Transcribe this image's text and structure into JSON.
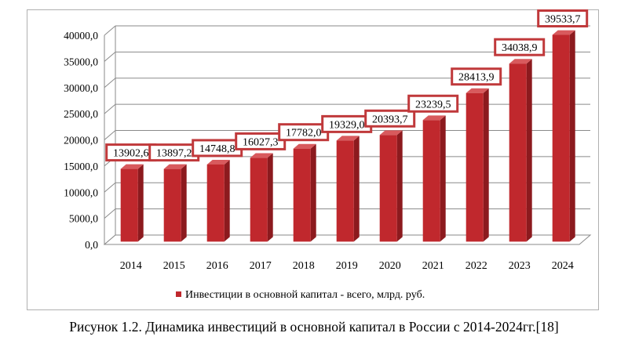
{
  "chart_data": {
    "type": "bar",
    "categories": [
      "2014",
      "2015",
      "2016",
      "2017",
      "2018",
      "2019",
      "2020",
      "2021",
      "2022",
      "2023",
      "2024"
    ],
    "series": [
      {
        "name": "Инвестиции в основной капитал - всего, млрд. руб.",
        "values": [
          13902.6,
          13897.2,
          14748.8,
          16027.3,
          17782.0,
          19329.0,
          20393.7,
          23239.5,
          28413.9,
          34038.9,
          39533.7
        ],
        "data_labels": [
          "13902,6",
          "13897,2",
          "14748,8",
          "16027,3",
          "17782,0",
          "19329,0",
          "20393,7",
          "23239,5",
          "28413,9",
          "34038,9",
          "39533,7"
        ]
      }
    ],
    "y_ticks": [
      "0,0",
      "5000,0",
      "10000,0",
      "15000,0",
      "20000,0",
      "25000,0",
      "30000,0",
      "35000,0",
      "40000,0"
    ],
    "ylim": [
      0,
      40000
    ],
    "grid": true,
    "legend_position": "bottom",
    "colors": {
      "bar": "#c0282d",
      "bar_side": "#8c1a1e",
      "label_border": "#c0393b"
    }
  },
  "caption": "Рисунок 1.2. Динамика инвестиций в основной капитал в России с 2014-2024гг.[18]"
}
